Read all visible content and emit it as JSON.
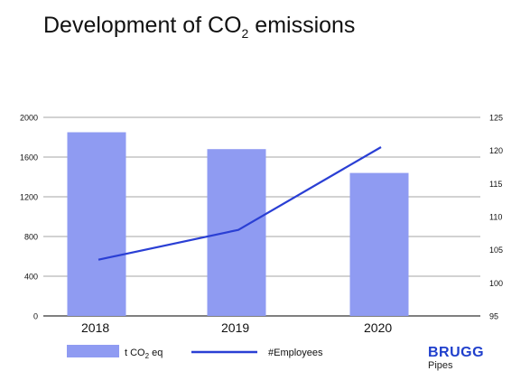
{
  "chart_data": {
    "type": "bar",
    "title": {
      "prefix": "Development of CO",
      "sub": "2",
      "suffix": " emissions"
    },
    "categories": [
      "2018",
      "2019",
      "2020"
    ],
    "series": [
      {
        "name": {
          "prefix": "t CO",
          "sub": "2",
          "suffix": " eq"
        },
        "type": "bar",
        "axis": "left",
        "values": [
          1850,
          1680,
          1440
        ],
        "color": "#8f9bf2"
      },
      {
        "name": "#Employees",
        "type": "line",
        "axis": "right",
        "values": [
          103.5,
          108,
          120.5
        ],
        "color": "#2a3fd4"
      }
    ],
    "y_left": {
      "ylim": [
        0,
        2000
      ],
      "ticks": [
        "0",
        "400",
        "800",
        "1200",
        "1600",
        "2000"
      ],
      "tick_values": [
        0,
        400,
        800,
        1200,
        1600,
        2000
      ]
    },
    "y_right": {
      "ylim": [
        95,
        125
      ],
      "ticks": [
        "95",
        "100",
        "105",
        "110",
        "115",
        "120",
        "125"
      ],
      "tick_values": [
        95,
        100,
        105,
        110,
        115,
        120,
        125
      ]
    },
    "grid": true,
    "legend": "bottom"
  },
  "brand": {
    "name": "BRUGG",
    "sub": "Pipes"
  },
  "colors": {
    "bar": "#8f9bf2",
    "line": "#2a3fd4",
    "grid": "#888888",
    "brand": "#1f3fcc"
  }
}
